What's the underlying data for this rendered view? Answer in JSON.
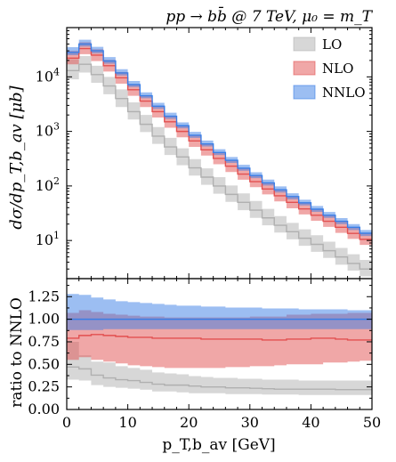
{
  "chart_data": {
    "type": "line",
    "style": "step-histogram-with-uncertainty-bands",
    "title": "pp → bb̄ @ 7 TeV, μ₀ = m_T",
    "xlabel": "p_T,b_av [GeV]",
    "bin_edges": [
      0,
      2,
      4,
      6,
      8,
      10,
      12,
      14,
      16,
      18,
      20,
      22,
      24,
      26,
      28,
      30,
      32,
      34,
      36,
      38,
      40,
      42,
      44,
      46,
      48,
      50
    ],
    "legend": {
      "position": "top-right",
      "entries": [
        "LO",
        "NLO",
        "NNLO"
      ]
    },
    "colors": {
      "LO": "#b0b0b0",
      "NLO": "#e25050",
      "NNLO": "#3a7ee6"
    },
    "panels": [
      {
        "name": "main",
        "ylabel": "dσ/dp_T,b_av [μb]",
        "yscale": "log",
        "ylim": [
          2,
          80000
        ],
        "xlim": [
          0,
          50
        ],
        "yticks": [
          "10^1",
          "10^2",
          "10^3",
          "10^4"
        ],
        "series": [
          {
            "name": "LO",
            "central": [
              13000,
              17000,
              11000,
              6800,
              4000,
              2300,
              1350,
              820,
              520,
              340,
              215,
              145,
              100,
              70,
              50,
              36,
              26,
              19,
              14.5,
              11,
              8.5,
              6.5,
              5,
              3.8,
              3.0
            ],
            "low": [
              9000,
              12000,
              7800,
              4800,
              2800,
              1650,
              970,
              590,
              370,
              240,
              155,
              105,
              72,
              51,
              36,
              26,
              19,
              14,
              10.5,
              8,
              6.2,
              4.8,
              3.6,
              2.8,
              2.2
            ],
            "high": [
              21000,
              24000,
              16000,
              10000,
              5900,
              3400,
              2000,
              1200,
              760,
              490,
              310,
              210,
              145,
              102,
              73,
              53,
              38,
              28,
              21,
              16,
              12.5,
              9.5,
              7.3,
              5.6,
              4.4
            ]
          },
          {
            "name": "NLO",
            "central": [
              22000,
              33000,
              25000,
              16000,
              9600,
              5800,
              3600,
              2300,
              1500,
              1000,
              670,
              460,
              320,
              230,
              165,
              120,
              88,
              66,
              50,
              38,
              29,
              22.5,
              17.5,
              13.5,
              10.5
            ],
            "low": [
              17000,
              26000,
              19500,
              12500,
              7500,
              4500,
              2800,
              1800,
              1170,
              780,
              520,
              360,
              250,
              180,
              130,
              95,
              70,
              52,
              39,
              30,
              23,
              17.8,
              13.8,
              10.7,
              8.3
            ],
            "high": [
              30000,
              43000,
              32000,
              20500,
              12300,
              7400,
              4600,
              2950,
              1920,
              1280,
              860,
              590,
              410,
              295,
              212,
              155,
              113,
              85,
              64,
              49,
              37.5,
              29,
              22.5,
              17.4,
              13.5
            ]
          },
          {
            "name": "NNLO",
            "central": [
              28000,
              40000,
              30000,
              19500,
              11800,
              7200,
              4500,
              2900,
              1900,
              1270,
              850,
              590,
              410,
              295,
              212,
              155,
              114,
              85,
              64,
              49,
              37.5,
              29,
              22.5,
              17.5,
              13.6
            ],
            "low": [
              25000,
              36000,
              27000,
              17500,
              10600,
              6500,
              4050,
              2600,
              1700,
              1140,
              760,
              530,
              370,
              265,
              190,
              139,
              102,
              76,
              57,
              44,
              33.5,
              26,
              20,
              15.6,
              12.1
            ],
            "high": [
              35000,
              48000,
              35500,
              23000,
              13800,
              8400,
              5200,
              3350,
              2200,
              1460,
              980,
              680,
              472,
              340,
              244,
              178,
              131,
              98,
              73.5,
              56,
              43,
              33.3,
              25.8,
              20,
              15.6
            ]
          }
        ]
      },
      {
        "name": "ratio",
        "ylabel": "ratio to NNLO",
        "yscale": "linear",
        "ylim": [
          0,
          1.45
        ],
        "xlim": [
          0,
          50
        ],
        "yticks": [
          0.0,
          0.25,
          0.5,
          0.75,
          1.0,
          1.25
        ],
        "xticks": [
          0,
          10,
          20,
          30,
          40,
          50
        ],
        "series": [
          {
            "name": "LO",
            "central": [
              0.47,
              0.45,
              0.38,
              0.35,
              0.33,
              0.32,
              0.3,
              0.28,
              0.27,
              0.27,
              0.26,
              0.25,
              0.25,
              0.24,
              0.24,
              0.235,
              0.23,
              0.225,
              0.225,
              0.225,
              0.225,
              0.225,
              0.22,
              0.22,
              0.22
            ],
            "low": [
              0.33,
              0.32,
              0.27,
              0.25,
              0.24,
              0.23,
              0.22,
              0.2,
              0.2,
              0.19,
              0.18,
              0.18,
              0.18,
              0.17,
              0.17,
              0.17,
              0.165,
              0.165,
              0.165,
              0.16,
              0.16,
              0.16,
              0.16,
              0.16,
              0.16
            ],
            "high": [
              0.75,
              0.6,
              0.53,
              0.52,
              0.48,
              0.46,
              0.44,
              0.41,
              0.4,
              0.39,
              0.37,
              0.36,
              0.35,
              0.35,
              0.34,
              0.34,
              0.33,
              0.33,
              0.33,
              0.32,
              0.32,
              0.32,
              0.32,
              0.32,
              0.32
            ]
          },
          {
            "name": "NLO",
            "central": [
              0.79,
              0.82,
              0.83,
              0.82,
              0.81,
              0.8,
              0.8,
              0.79,
              0.79,
              0.79,
              0.79,
              0.78,
              0.78,
              0.78,
              0.78,
              0.78,
              0.77,
              0.77,
              0.78,
              0.78,
              0.79,
              0.79,
              0.78,
              0.77,
              0.77
            ],
            "low": [
              0.55,
              0.58,
              0.55,
              0.53,
              0.51,
              0.49,
              0.48,
              0.47,
              0.46,
              0.46,
              0.46,
              0.46,
              0.46,
              0.47,
              0.47,
              0.48,
              0.48,
              0.49,
              0.5,
              0.5,
              0.5,
              0.52,
              0.52,
              0.53,
              0.54
            ],
            "high": [
              1.07,
              1.1,
              1.08,
              1.06,
              1.05,
              1.04,
              1.03,
              1.03,
              1.02,
              1.02,
              1.02,
              1.02,
              1.02,
              1.02,
              1.02,
              1.03,
              1.03,
              1.03,
              1.05,
              1.05,
              1.06,
              1.06,
              1.06,
              1.07,
              1.07
            ]
          },
          {
            "name": "NNLO",
            "central": [
              1.0,
              1.0,
              1.0,
              1.0,
              1.0,
              1.0,
              1.0,
              1.0,
              1.0,
              1.0,
              1.0,
              1.0,
              1.0,
              1.0,
              1.0,
              1.0,
              1.0,
              1.0,
              1.0,
              1.0,
              1.0,
              1.0,
              1.0,
              1.0,
              1.0
            ],
            "low": [
              0.88,
              0.88,
              0.88,
              0.89,
              0.89,
              0.89,
              0.89,
              0.89,
              0.89,
              0.89,
              0.89,
              0.89,
              0.89,
              0.89,
              0.89,
              0.89,
              0.89,
              0.89,
              0.89,
              0.89,
              0.89,
              0.89,
              0.89,
              0.89,
              0.89
            ],
            "high": [
              1.28,
              1.27,
              1.24,
              1.22,
              1.2,
              1.19,
              1.18,
              1.17,
              1.16,
              1.15,
              1.15,
              1.14,
              1.14,
              1.13,
              1.13,
              1.13,
              1.12,
              1.12,
              1.12,
              1.11,
              1.11,
              1.11,
              1.11,
              1.1,
              1.1
            ]
          }
        ]
      }
    ]
  }
}
